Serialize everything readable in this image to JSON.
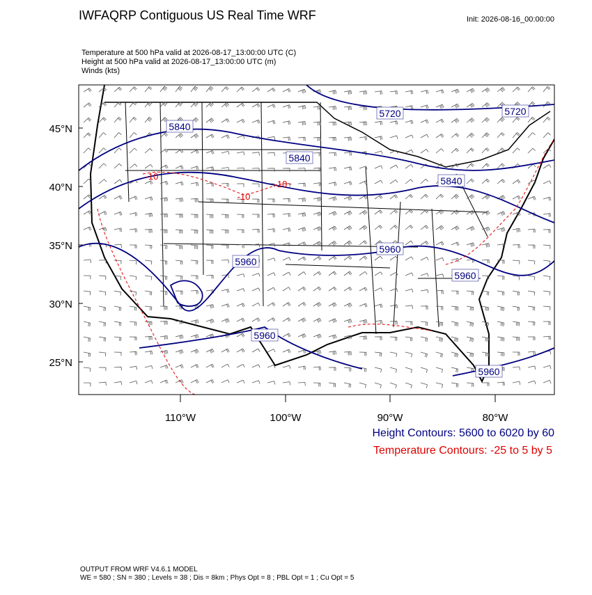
{
  "header": {
    "title": "IWFAQRP Contiguous US Real Time WRF",
    "init": "Init: 2026-08-16_00:00:00"
  },
  "fields": [
    "Temperature at 500 hPa valid at 2026-08-17_13:00:00 UTC   (C)",
    "Height at 500 hPa valid at 2026-08-17_13:00:00 UTC   (m)",
    "Winds   (kts)"
  ],
  "map": {
    "lat_labels": [
      "45°N",
      "40°N",
      "35°N",
      "30°N",
      "25°N"
    ],
    "lon_labels": [
      "110°W",
      "100°W",
      "90°W",
      "80°W"
    ],
    "height_labels": [
      "5720",
      "5720",
      "5840",
      "5840",
      "5840",
      "5960",
      "5960",
      "5960",
      "5960",
      "5960"
    ],
    "temperature_labels": [
      "-10",
      "-10",
      "-10"
    ]
  },
  "legend": {
    "height": "Height Contours: 5600 to 6020 by 60",
    "temperature": "Temperature Contours: -25 to 5 by 5"
  },
  "footer": {
    "model": "OUTPUT FROM WRF V4.6.1 MODEL",
    "settings": "WE = 580 ; SN = 380 ; Levels = 38 ; Dis = 8km ; Phys Opt = 8 ; PBL Opt = 1 ; Cu Opt = 5"
  }
}
